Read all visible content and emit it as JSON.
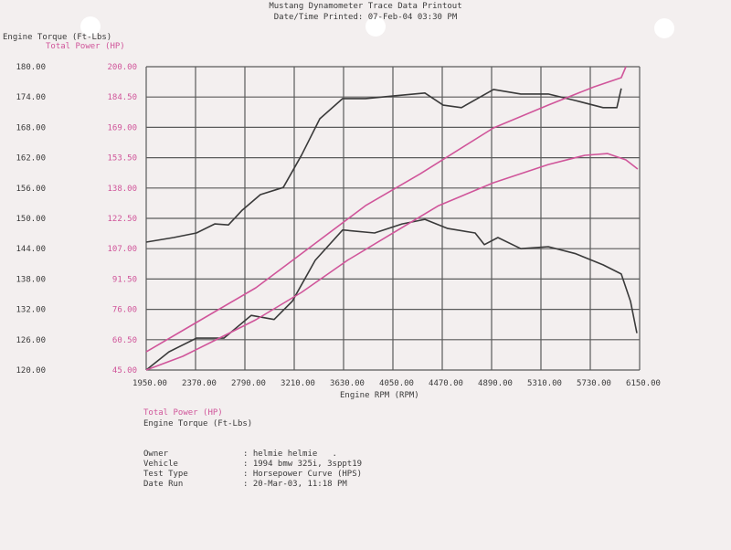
{
  "header": {
    "title": "Mustang Dynamometer Trace Data Printout",
    "printed": "Date/Time Printed: 07-Feb-04 03:30 PM"
  },
  "legend": {
    "power": "Total Power (HP)",
    "torque": "Engine Torque (Ft-Lbs)"
  },
  "info": {
    "rows": [
      {
        "label": "Owner",
        "value": ": helmie helmie   ."
      },
      {
        "label": "Vehicle",
        "value": ": 1994 bmw 325i, 3sppt19"
      },
      {
        "label": "Test Type",
        "value": ": Horsepower Curve (HPS)"
      },
      {
        "label": "Date Run",
        "value": ": 20-Mar-03, 11:18 PM"
      }
    ]
  },
  "chart_data": {
    "type": "line",
    "title": "Mustang Dynamometer Trace Data Printout",
    "xlabel": "Engine RPM (RPM)",
    "ylabel": "Engine Torque (Ft-Lbs)",
    "y2label": "Total Power (HP)",
    "xlim": [
      1950,
      6150
    ],
    "ylim": [
      120,
      180
    ],
    "y2lim": [
      45,
      200
    ],
    "grid": true,
    "x_ticks": [
      "1950.00",
      "2370.00",
      "2790.00",
      "3210.00",
      "3630.00",
      "4050.00",
      "4470.00",
      "4890.00",
      "5310.00",
      "5730.00",
      "6150.00"
    ],
    "y_ticks": [
      "120.00",
      "126.00",
      "132.00",
      "138.00",
      "144.00",
      "150.00",
      "156.00",
      "162.00",
      "168.00",
      "174.00",
      "180.00"
    ],
    "y2_ticks": [
      "45.00",
      "60.50",
      "76.00",
      "91.50",
      "107.00",
      "122.50",
      "138.00",
      "153.50",
      "169.00",
      "184.50",
      "200.00"
    ],
    "colors": {
      "torque": "#3a3a3a",
      "power": "#d0559a",
      "grid": "#5a5a5a"
    },
    "series": [
      {
        "axis": "left",
        "color": "#3a3a3a",
        "x": [
          1950,
          2183,
          2378,
          2533,
          2650,
          2767,
          2922,
          3117,
          3272,
          3428,
          3622,
          3817,
          4050,
          4322,
          4478,
          4633,
          4906,
          5139,
          5372,
          5606,
          5839,
          5956,
          5994
        ],
        "y": [
          145.3,
          146.2,
          147.1,
          148.9,
          148.7,
          151.6,
          154.7,
          156.1,
          162.5,
          169.7,
          173.7,
          173.7,
          174.2,
          174.8,
          172.4,
          171.9,
          175.5,
          174.6,
          174.6,
          173.3,
          171.9,
          171.9,
          175.7
        ]
      },
      {
        "axis": "left",
        "color": "#3a3a3a",
        "x": [
          1950,
          2144,
          2378,
          2611,
          2844,
          3039,
          3194,
          3389,
          3622,
          3894,
          4128,
          4322,
          4517,
          4750,
          4828,
          4944,
          5139,
          5372,
          5606,
          5839,
          5994,
          6072,
          6127
        ],
        "y": [
          120,
          123.6,
          126.3,
          126.3,
          130.8,
          130,
          133.6,
          141.7,
          147.7,
          147.1,
          148.9,
          149.8,
          148,
          147.1,
          144.8,
          146.2,
          144,
          144.4,
          143,
          140.8,
          139,
          133.6,
          127.3
        ]
      },
      {
        "axis": "right",
        "color": "#d0559a",
        "x": [
          1950,
          2417,
          2883,
          3350,
          3817,
          4283,
          4906,
          5372,
          5761,
          5994,
          6033
        ],
        "y": [
          54.3,
          70.7,
          87,
          108,
          129,
          145.3,
          168.7,
          180.4,
          189.7,
          194.4,
          200
        ]
      },
      {
        "axis": "right",
        "color": "#d0559a",
        "x": [
          1950,
          2261,
          2572,
          2883,
          3272,
          3661,
          4050,
          4439,
          4906,
          5372,
          5683,
          5878,
          6033,
          6134
        ],
        "y": [
          45,
          52,
          61.3,
          70.7,
          84.7,
          101,
          115,
          129,
          140.7,
          150,
          154.7,
          155.6,
          152.4,
          147.7
        ]
      }
    ]
  }
}
